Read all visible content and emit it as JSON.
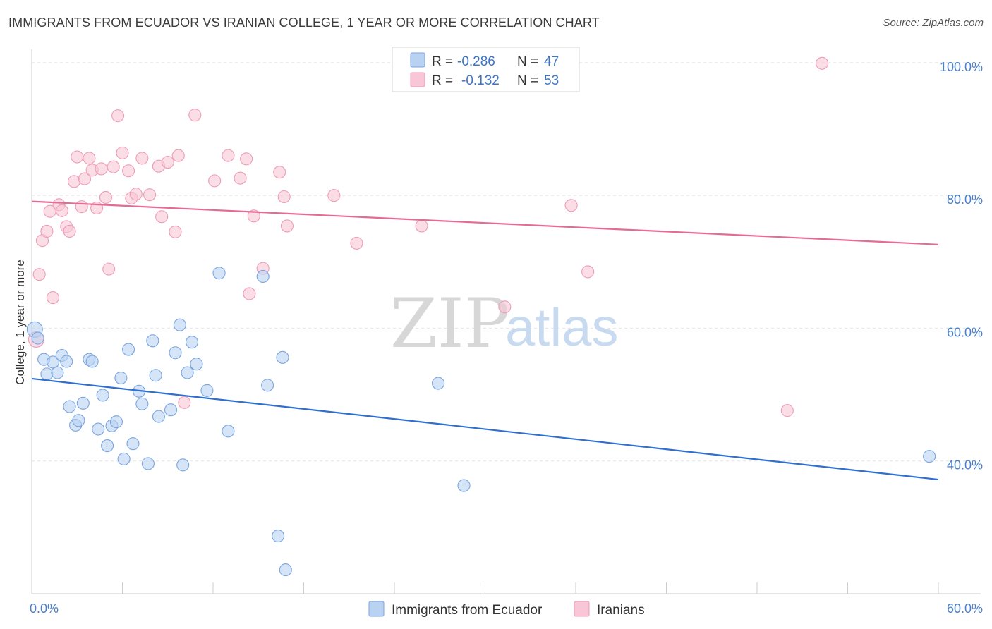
{
  "title": "IMMIGRANTS FROM ECUADOR VS IRANIAN COLLEGE, 1 YEAR OR MORE CORRELATION CHART",
  "source": "Source: ZipAtlas.com",
  "watermark": {
    "zip": "ZIP",
    "atlas": "atlas"
  },
  "legend": {
    "rows": [
      {
        "r_label": "R =",
        "r_value": "-0.286",
        "n_label": "N =",
        "n_value": "47"
      },
      {
        "r_label": "R =",
        "r_value": "-0.132",
        "n_label": "N =",
        "n_value": "53"
      }
    ]
  },
  "bottom_legend": [
    "Immigrants from Ecuador",
    "Iranians"
  ],
  "colors": {
    "ecuador_fill": "#b9d2f2",
    "ecuador_stroke": "#7aa6e0",
    "ecuador_line": "#2f6fcf",
    "iranian_fill": "#f8c6d6",
    "iranian_stroke": "#ee9cb8",
    "iranian_line": "#e56b94",
    "axis_label": "#4a7fc9"
  },
  "chart_data": {
    "type": "scatter",
    "title": "IMMIGRANTS FROM ECUADOR VS IRANIAN COLLEGE, 1 YEAR OR MORE CORRELATION CHART",
    "xlabel": "",
    "ylabel": "College, 1 year or more",
    "xlim": [
      0,
      60
    ],
    "ylim": [
      20,
      102
    ],
    "x_tick_labels": [
      {
        "value": 0,
        "label": "0.0%"
      },
      {
        "value": 60,
        "label": "60.0%"
      }
    ],
    "y_tick_labels": [
      {
        "value": 40,
        "label": "40.0%"
      },
      {
        "value": 60,
        "label": "60.0%"
      },
      {
        "value": 80,
        "label": "80.0%"
      },
      {
        "value": 100,
        "label": "100.0%"
      }
    ],
    "grid": true,
    "legend_position": "top-center",
    "series": [
      {
        "name": "Immigrants from Ecuador",
        "r": -0.286,
        "n": 47,
        "trend": {
          "x": [
            0,
            60
          ],
          "y": [
            52.4,
            37.2
          ]
        },
        "points": [
          [
            0.2,
            59.8
          ],
          [
            0.4,
            58.5
          ],
          [
            0.8,
            55.3
          ],
          [
            1.0,
            53.1
          ],
          [
            1.4,
            54.9
          ],
          [
            1.7,
            53.3
          ],
          [
            2.0,
            55.9
          ],
          [
            2.3,
            55.0
          ],
          [
            2.5,
            48.2
          ],
          [
            2.9,
            45.4
          ],
          [
            3.1,
            46.1
          ],
          [
            3.4,
            48.7
          ],
          [
            3.8,
            55.3
          ],
          [
            4.0,
            55.0
          ],
          [
            4.4,
            44.8
          ],
          [
            4.7,
            49.9
          ],
          [
            5.0,
            42.3
          ],
          [
            5.3,
            45.3
          ],
          [
            5.6,
            45.9
          ],
          [
            5.9,
            52.5
          ],
          [
            6.1,
            40.3
          ],
          [
            6.4,
            56.8
          ],
          [
            6.7,
            42.6
          ],
          [
            7.1,
            50.5
          ],
          [
            7.3,
            48.6
          ],
          [
            7.7,
            39.6
          ],
          [
            8.0,
            58.1
          ],
          [
            8.2,
            52.9
          ],
          [
            8.4,
            46.7
          ],
          [
            9.2,
            47.7
          ],
          [
            9.5,
            56.3
          ],
          [
            9.8,
            60.5
          ],
          [
            10.0,
            39.4
          ],
          [
            10.3,
            53.3
          ],
          [
            10.6,
            57.9
          ],
          [
            10.9,
            54.6
          ],
          [
            11.6,
            50.6
          ],
          [
            12.4,
            68.3
          ],
          [
            13.0,
            44.5
          ],
          [
            15.3,
            67.8
          ],
          [
            15.6,
            51.4
          ],
          [
            16.3,
            28.7
          ],
          [
            16.6,
            55.6
          ],
          [
            16.8,
            23.6
          ],
          [
            26.9,
            51.7
          ],
          [
            28.6,
            36.3
          ],
          [
            59.4,
            40.7
          ]
        ]
      },
      {
        "name": "Iranians",
        "r": -0.132,
        "n": 53,
        "trend": {
          "x": [
            0,
            60
          ],
          "y": [
            79.1,
            72.6
          ]
        },
        "points": [
          [
            0.3,
            58.3
          ],
          [
            0.5,
            68.1
          ],
          [
            0.7,
            73.2
          ],
          [
            1.0,
            74.6
          ],
          [
            1.2,
            77.6
          ],
          [
            1.4,
            64.6
          ],
          [
            1.8,
            78.6
          ],
          [
            2.0,
            77.7
          ],
          [
            2.3,
            75.3
          ],
          [
            2.5,
            74.6
          ],
          [
            2.8,
            82.1
          ],
          [
            3.0,
            85.8
          ],
          [
            3.3,
            78.3
          ],
          [
            3.5,
            82.5
          ],
          [
            3.8,
            85.6
          ],
          [
            4.0,
            83.8
          ],
          [
            4.3,
            78.1
          ],
          [
            4.6,
            84.0
          ],
          [
            4.9,
            79.7
          ],
          [
            5.1,
            68.9
          ],
          [
            5.4,
            84.3
          ],
          [
            5.7,
            92.0
          ],
          [
            6.0,
            86.4
          ],
          [
            6.4,
            83.7
          ],
          [
            6.6,
            79.6
          ],
          [
            6.9,
            80.2
          ],
          [
            7.3,
            85.6
          ],
          [
            7.8,
            80.1
          ],
          [
            8.4,
            84.4
          ],
          [
            8.6,
            76.8
          ],
          [
            9.0,
            85.0
          ],
          [
            9.5,
            74.5
          ],
          [
            9.7,
            86.0
          ],
          [
            10.1,
            48.8
          ],
          [
            10.8,
            92.1
          ],
          [
            12.1,
            82.2
          ],
          [
            13.0,
            86.0
          ],
          [
            13.8,
            82.6
          ],
          [
            14.2,
            85.5
          ],
          [
            14.4,
            65.2
          ],
          [
            14.7,
            76.9
          ],
          [
            15.3,
            69.0
          ],
          [
            16.4,
            83.5
          ],
          [
            16.7,
            79.8
          ],
          [
            16.9,
            75.4
          ],
          [
            20.0,
            80.0
          ],
          [
            21.5,
            72.8
          ],
          [
            25.8,
            75.4
          ],
          [
            31.3,
            63.2
          ],
          [
            35.7,
            78.5
          ],
          [
            36.8,
            68.5
          ],
          [
            50.0,
            47.6
          ],
          [
            52.3,
            99.9
          ]
        ]
      }
    ]
  }
}
